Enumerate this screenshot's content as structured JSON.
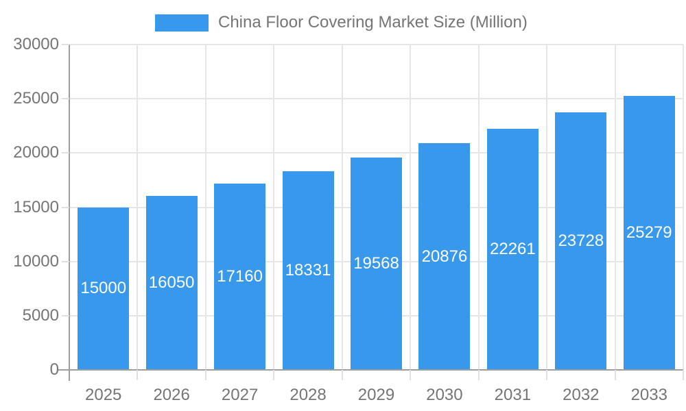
{
  "legend": {
    "label": "China Floor Covering Market Size (Million)"
  },
  "chart_data": {
    "type": "bar",
    "title": "China Floor Covering Market Size (Million)",
    "categories": [
      "2025",
      "2026",
      "2027",
      "2028",
      "2029",
      "2030",
      "2031",
      "2032",
      "2033"
    ],
    "values": [
      15000,
      16050,
      17160,
      18331,
      19568,
      20876,
      22261,
      23728,
      25279
    ],
    "xlabel": "",
    "ylabel": "",
    "ylim": [
      0,
      30000
    ],
    "yticks": [
      0,
      5000,
      10000,
      15000,
      20000,
      25000,
      30000
    ],
    "grid": true,
    "legend_position": "top-center",
    "bar_label_position": "inside-center",
    "colors": {
      "bar": "#3899ec",
      "axis": "#9e9e9e",
      "gridline": "#e6e6e6",
      "tick": "#e0e0e0",
      "text": "#757575",
      "bar_label": "#ffffff",
      "background": "#ffffff"
    }
  }
}
